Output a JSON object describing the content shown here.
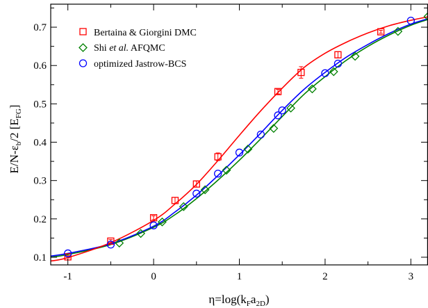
{
  "chart_data": {
    "type": "scatter",
    "xlabel": {
      "main": "η=log(k",
      "sub1": "F",
      "mid": "a",
      "sub2": "2D",
      "end": ")"
    },
    "ylabel": {
      "main": "E/N-ε",
      "sub1": "b",
      "mid": "/2 [E",
      "sub2": "FG",
      "end": "]"
    },
    "xlim": [
      -1.2,
      3.2
    ],
    "ylim": [
      0.08,
      0.76
    ],
    "x_ticks": [
      -1,
      0,
      1,
      2,
      3
    ],
    "x_tick_labels": [
      "-1",
      "0",
      "1",
      "2",
      "3"
    ],
    "y_ticks": [
      0.1,
      0.2,
      0.3,
      0.4,
      0.5,
      0.6,
      0.7
    ],
    "y_tick_labels": [
      "0.1",
      "0.2",
      "0.3",
      "0.4",
      "0.5",
      "0.6",
      "0.7"
    ],
    "grid": false,
    "legend_position": "top-left",
    "series": [
      {
        "name": "Bertaina & Giorgini DMC",
        "color": "#ff0000",
        "marker": "square",
        "x": [
          -1.0,
          -0.5,
          0.0,
          0.25,
          0.5,
          0.75,
          1.45,
          1.72,
          2.15,
          2.65
        ],
        "y": [
          0.101,
          0.142,
          0.203,
          0.248,
          0.291,
          0.362,
          0.532,
          0.582,
          0.628,
          0.688
        ],
        "err": [
          0.003,
          0.004,
          0.005,
          0.008,
          0.008,
          0.01,
          0.006,
          0.015,
          0.008,
          0.004
        ],
        "fit_x": [
          -1.2,
          -1.0,
          -0.5,
          0.0,
          0.25,
          0.5,
          0.75,
          1.0,
          1.25,
          1.5,
          1.75,
          2.0,
          2.25,
          2.5,
          2.75,
          3.0,
          3.2
        ],
        "fit_y": [
          0.09,
          0.099,
          0.138,
          0.196,
          0.239,
          0.29,
          0.352,
          0.418,
          0.482,
          0.541,
          0.594,
          0.632,
          0.661,
          0.685,
          0.704,
          0.718,
          0.727
        ]
      },
      {
        "name_parts": [
          "Shi ",
          "et al.",
          " AFQMC"
        ],
        "color": "#008000",
        "marker": "diamond",
        "x": [
          -0.4,
          -0.15,
          0.1,
          0.35,
          0.6,
          0.85,
          1.1,
          1.4,
          1.6,
          1.85,
          2.1,
          2.35,
          2.85,
          3.2
        ],
        "y": [
          0.137,
          0.162,
          0.192,
          0.232,
          0.276,
          0.327,
          0.382,
          0.436,
          0.489,
          0.539,
          0.584,
          0.624,
          0.689,
          0.728
        ],
        "fit_x": [
          -1.2,
          -1.0,
          -0.5,
          0.0,
          0.25,
          0.5,
          0.75,
          1.0,
          1.25,
          1.5,
          1.75,
          2.0,
          2.25,
          2.5,
          2.75,
          3.0,
          3.2
        ],
        "fit_y": [
          0.1,
          0.107,
          0.133,
          0.178,
          0.211,
          0.253,
          0.301,
          0.353,
          0.409,
          0.467,
          0.524,
          0.571,
          0.614,
          0.65,
          0.68,
          0.705,
          0.72
        ]
      },
      {
        "name": "optimized Jastrow-BCS",
        "color": "#0000ff",
        "marker": "circle",
        "x": [
          -1.0,
          -0.5,
          0.0,
          0.5,
          0.75,
          1.0,
          1.25,
          1.45,
          1.5,
          2.0,
          2.15,
          3.0
        ],
        "y": [
          0.11,
          0.133,
          0.183,
          0.266,
          0.318,
          0.373,
          0.42,
          0.47,
          0.483,
          0.58,
          0.605,
          0.717
        ],
        "fit_x": [
          -1.2,
          -1.0,
          -0.5,
          0.0,
          0.25,
          0.5,
          0.75,
          1.0,
          1.25,
          1.5,
          1.75,
          2.0,
          2.25,
          2.5,
          2.75,
          3.0,
          3.2
        ],
        "fit_y": [
          0.103,
          0.11,
          0.135,
          0.181,
          0.218,
          0.262,
          0.313,
          0.367,
          0.424,
          0.483,
          0.537,
          0.582,
          0.622,
          0.655,
          0.684,
          0.708,
          0.722
        ]
      }
    ]
  }
}
